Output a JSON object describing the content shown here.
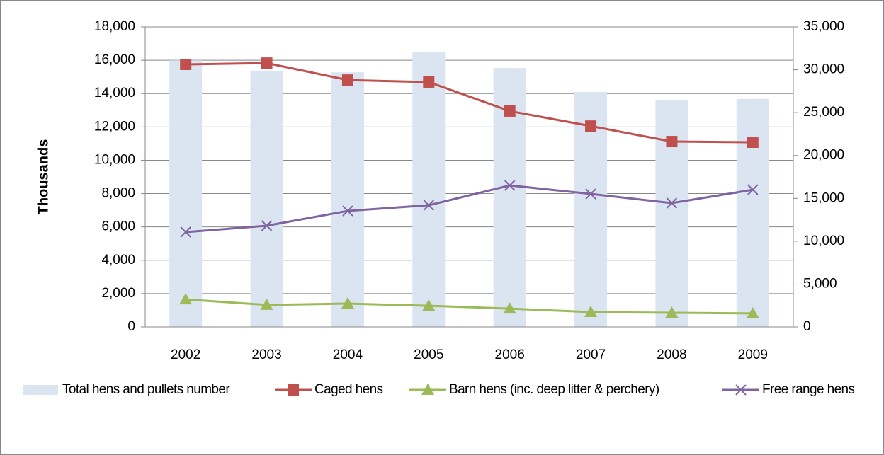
{
  "chart_data": {
    "type": "bar-line",
    "y_label": "Thousands",
    "categories": [
      "2002",
      "2003",
      "2004",
      "2005",
      "2006",
      "2007",
      "2008",
      "2009"
    ],
    "series": [
      {
        "name": "Total hens and pullets number",
        "color": "#dbe5f1",
        "type": "bar",
        "axis": "y2",
        "values": [
          31100,
          29900,
          29700,
          32100,
          30200,
          27400,
          26500,
          26600
        ]
      },
      {
        "name": "Caged hens",
        "color": "#c0504d",
        "type": "line",
        "marker": "square",
        "values": [
          15750,
          15830,
          14810,
          14690,
          12950,
          12050,
          11120,
          11080
        ]
      },
      {
        "name": "Barn hens (inc. deep litter & perchery)",
        "color": "#9bbb59",
        "type": "line",
        "marker": "triangle",
        "values": [
          1650,
          1320,
          1400,
          1270,
          1100,
          890,
          850,
          810
        ]
      },
      {
        "name": "Free range hens",
        "color": "#8064a2",
        "type": "line",
        "marker": "x",
        "values": [
          5690,
          6070,
          6960,
          7300,
          8490,
          7980,
          7430,
          8230
        ]
      }
    ],
    "ylim": [
      0,
      18000
    ],
    "yticks": [
      0,
      {
        "value": 2000,
        "label": "2,000"
      },
      {
        "value": 4000,
        "label": "4,000"
      },
      {
        "value": 6000,
        "label": "6,000"
      },
      {
        "value": 8000,
        "label": "8,000"
      },
      {
        "value": 10000,
        "label": "10,000"
      },
      {
        "value": 12000,
        "label": "12,000"
      },
      {
        "value": 14000,
        "label": "14,000"
      },
      {
        "value": 16000,
        "label": "16,000"
      },
      {
        "value": 18000,
        "label": "18,000"
      }
    ],
    "y2lim": [
      0,
      35000
    ],
    "y2ticks": [
      0,
      {
        "value": 5000,
        "label": "5,000"
      },
      {
        "value": 10000,
        "label": "10,000"
      },
      {
        "value": 15000,
        "label": "15,000"
      },
      {
        "value": 20000,
        "label": "20,000"
      },
      {
        "value": 25000,
        "label": "25,000"
      },
      {
        "value": 30000,
        "label": "30,000"
      },
      {
        "value": 35000,
        "label": "35,000"
      }
    ],
    "grid": true,
    "legend": "bottom"
  }
}
